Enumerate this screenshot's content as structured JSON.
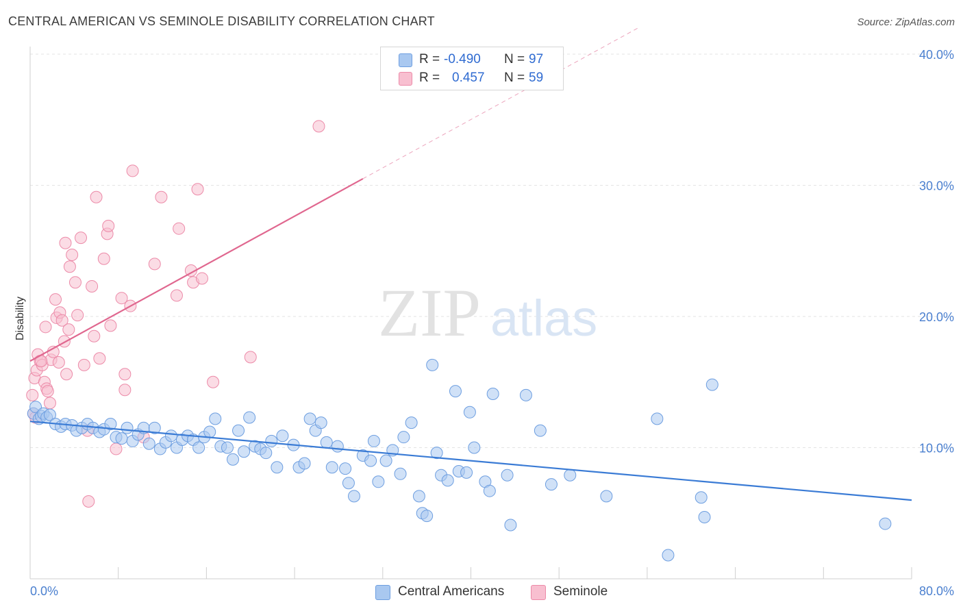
{
  "header": {
    "title": "CENTRAL AMERICAN VS SEMINOLE DISABILITY CORRELATION CHART",
    "source": "Source: ZipAtlas.com"
  },
  "watermark": {
    "zip": "ZIP",
    "atlas": "atlas"
  },
  "legend": {
    "rows": [
      {
        "r_label": "R =",
        "r_value": "-0.490",
        "n_label": "N =",
        "n_value": "97",
        "color": "#a9c8f0",
        "border": "#6d9ee0"
      },
      {
        "r_label": "R =",
        "r_value": "0.457",
        "n_label": "N =",
        "n_value": "59",
        "color": "#f8bfd0",
        "border": "#ec8aa8"
      }
    ]
  },
  "bottom_legend": [
    {
      "label": "Central Americans",
      "color": "#a9c8f0",
      "border": "#6d9ee0"
    },
    {
      "label": "Seminole",
      "color": "#f8bfd0",
      "border": "#ec8aa8"
    }
  ],
  "chart_data": {
    "type": "scatter",
    "ylabel": "Disability",
    "xlim": [
      0,
      80
    ],
    "ylim": [
      0,
      40
    ],
    "x_tick_labels": [
      "0.0%",
      "80.0%"
    ],
    "y_tick_labels": [
      "10.0%",
      "20.0%",
      "30.0%",
      "40.0%"
    ],
    "y_ticks": [
      10,
      20,
      30,
      40
    ],
    "grid": true,
    "colors": {
      "blue": "#3a7bd5",
      "blue_fill": "#a9c8f0",
      "pink": "#e0678f",
      "pink_fill": "#f8bfd0"
    },
    "series": [
      {
        "name": "Central Americans",
        "trend": {
          "x1": 0,
          "y1": 12.0,
          "x2": 80,
          "y2": 6.0
        },
        "points": [
          [
            0.3,
            12.6
          ],
          [
            0.5,
            13.1
          ],
          [
            0.8,
            12.2
          ],
          [
            1.0,
            12.4
          ],
          [
            1.2,
            12.6
          ],
          [
            1.5,
            12.3
          ],
          [
            1.8,
            12.5
          ],
          [
            2.3,
            11.8
          ],
          [
            2.8,
            11.6
          ],
          [
            3.2,
            11.8
          ],
          [
            3.8,
            11.7
          ],
          [
            4.2,
            11.3
          ],
          [
            4.7,
            11.5
          ],
          [
            5.2,
            11.8
          ],
          [
            5.7,
            11.5
          ],
          [
            6.3,
            11.2
          ],
          [
            6.7,
            11.4
          ],
          [
            7.3,
            11.8
          ],
          [
            7.8,
            10.8
          ],
          [
            8.3,
            10.7
          ],
          [
            8.8,
            11.5
          ],
          [
            9.3,
            10.5
          ],
          [
            9.8,
            11.0
          ],
          [
            10.3,
            11.5
          ],
          [
            10.8,
            10.3
          ],
          [
            11.3,
            11.5
          ],
          [
            11.8,
            9.9
          ],
          [
            12.3,
            10.4
          ],
          [
            12.8,
            10.9
          ],
          [
            13.3,
            10.0
          ],
          [
            13.8,
            10.6
          ],
          [
            14.3,
            10.9
          ],
          [
            14.8,
            10.6
          ],
          [
            15.3,
            10.0
          ],
          [
            15.8,
            10.8
          ],
          [
            16.3,
            11.2
          ],
          [
            16.8,
            12.2
          ],
          [
            17.3,
            10.1
          ],
          [
            17.9,
            10.0
          ],
          [
            18.4,
            9.1
          ],
          [
            18.9,
            11.3
          ],
          [
            19.4,
            9.7
          ],
          [
            19.9,
            12.3
          ],
          [
            20.4,
            10.1
          ],
          [
            20.9,
            9.9
          ],
          [
            21.4,
            9.6
          ],
          [
            21.9,
            10.5
          ],
          [
            22.4,
            8.5
          ],
          [
            22.9,
            10.9
          ],
          [
            23.9,
            10.2
          ],
          [
            24.4,
            8.5
          ],
          [
            24.9,
            8.8
          ],
          [
            25.4,
            12.2
          ],
          [
            25.9,
            11.3
          ],
          [
            26.4,
            11.9
          ],
          [
            26.9,
            10.4
          ],
          [
            27.4,
            8.5
          ],
          [
            27.9,
            10.1
          ],
          [
            28.6,
            8.4
          ],
          [
            28.9,
            7.3
          ],
          [
            29.4,
            6.3
          ],
          [
            30.2,
            9.4
          ],
          [
            30.9,
            9.0
          ],
          [
            31.2,
            10.5
          ],
          [
            31.6,
            7.4
          ],
          [
            32.3,
            9.0
          ],
          [
            32.9,
            9.8
          ],
          [
            33.6,
            8.0
          ],
          [
            33.9,
            10.8
          ],
          [
            34.6,
            11.9
          ],
          [
            35.3,
            6.3
          ],
          [
            35.6,
            5.0
          ],
          [
            36.0,
            4.8
          ],
          [
            36.5,
            16.3
          ],
          [
            36.9,
            9.6
          ],
          [
            37.3,
            7.9
          ],
          [
            37.9,
            7.5
          ],
          [
            38.6,
            14.3
          ],
          [
            38.9,
            8.2
          ],
          [
            39.6,
            8.1
          ],
          [
            39.9,
            12.7
          ],
          [
            40.3,
            10.0
          ],
          [
            41.3,
            7.4
          ],
          [
            41.7,
            6.7
          ],
          [
            42.0,
            14.1
          ],
          [
            43.3,
            7.9
          ],
          [
            43.6,
            4.1
          ],
          [
            45.0,
            14.0
          ],
          [
            46.3,
            11.3
          ],
          [
            47.3,
            7.2
          ],
          [
            49.0,
            7.9
          ],
          [
            52.3,
            6.3
          ],
          [
            56.9,
            12.2
          ],
          [
            57.9,
            1.8
          ],
          [
            60.9,
            6.2
          ],
          [
            61.2,
            4.7
          ],
          [
            61.9,
            14.8
          ],
          [
            77.6,
            4.2
          ]
        ]
      },
      {
        "name": "Seminole",
        "trend": {
          "x1": 0,
          "y1": 16.6,
          "x2": 30.2,
          "y2": 30.5
        },
        "points": [
          [
            0.2,
            14.0
          ],
          [
            0.4,
            15.3
          ],
          [
            0.6,
            15.9
          ],
          [
            0.7,
            17.1
          ],
          [
            0.9,
            16.6
          ],
          [
            1.1,
            16.3
          ],
          [
            1.3,
            15.0
          ],
          [
            1.4,
            19.2
          ],
          [
            1.5,
            14.5
          ],
          [
            1.6,
            14.3
          ],
          [
            1.8,
            13.4
          ],
          [
            1.9,
            16.7
          ],
          [
            2.1,
            17.3
          ],
          [
            2.3,
            21.3
          ],
          [
            2.4,
            19.9
          ],
          [
            2.6,
            16.5
          ],
          [
            2.7,
            20.3
          ],
          [
            2.9,
            19.7
          ],
          [
            3.1,
            18.1
          ],
          [
            3.2,
            25.6
          ],
          [
            3.3,
            15.6
          ],
          [
            3.5,
            19.0
          ],
          [
            3.6,
            23.8
          ],
          [
            3.8,
            24.7
          ],
          [
            4.1,
            22.6
          ],
          [
            4.3,
            20.1
          ],
          [
            4.6,
            26.0
          ],
          [
            4.9,
            16.3
          ],
          [
            5.2,
            11.3
          ],
          [
            5.3,
            5.9
          ],
          [
            5.6,
            22.3
          ],
          [
            5.8,
            18.5
          ],
          [
            6.0,
            29.1
          ],
          [
            6.3,
            16.8
          ],
          [
            6.7,
            24.4
          ],
          [
            7.0,
            26.3
          ],
          [
            7.1,
            26.9
          ],
          [
            7.3,
            19.3
          ],
          [
            7.8,
            9.9
          ],
          [
            8.3,
            21.4
          ],
          [
            8.6,
            15.6
          ],
          [
            8.6,
            14.4
          ],
          [
            9.1,
            20.8
          ],
          [
            9.3,
            31.1
          ],
          [
            10.3,
            10.8
          ],
          [
            11.3,
            24.0
          ],
          [
            11.9,
            29.1
          ],
          [
            13.3,
            21.6
          ],
          [
            13.5,
            26.7
          ],
          [
            14.6,
            23.5
          ],
          [
            14.8,
            22.6
          ],
          [
            15.2,
            29.7
          ],
          [
            15.6,
            22.9
          ],
          [
            16.6,
            15.0
          ],
          [
            20.0,
            16.9
          ],
          [
            26.2,
            34.5
          ],
          [
            0.3,
            12.6
          ],
          [
            1.0,
            16.6
          ],
          [
            0.5,
            12.3
          ]
        ]
      }
    ]
  }
}
